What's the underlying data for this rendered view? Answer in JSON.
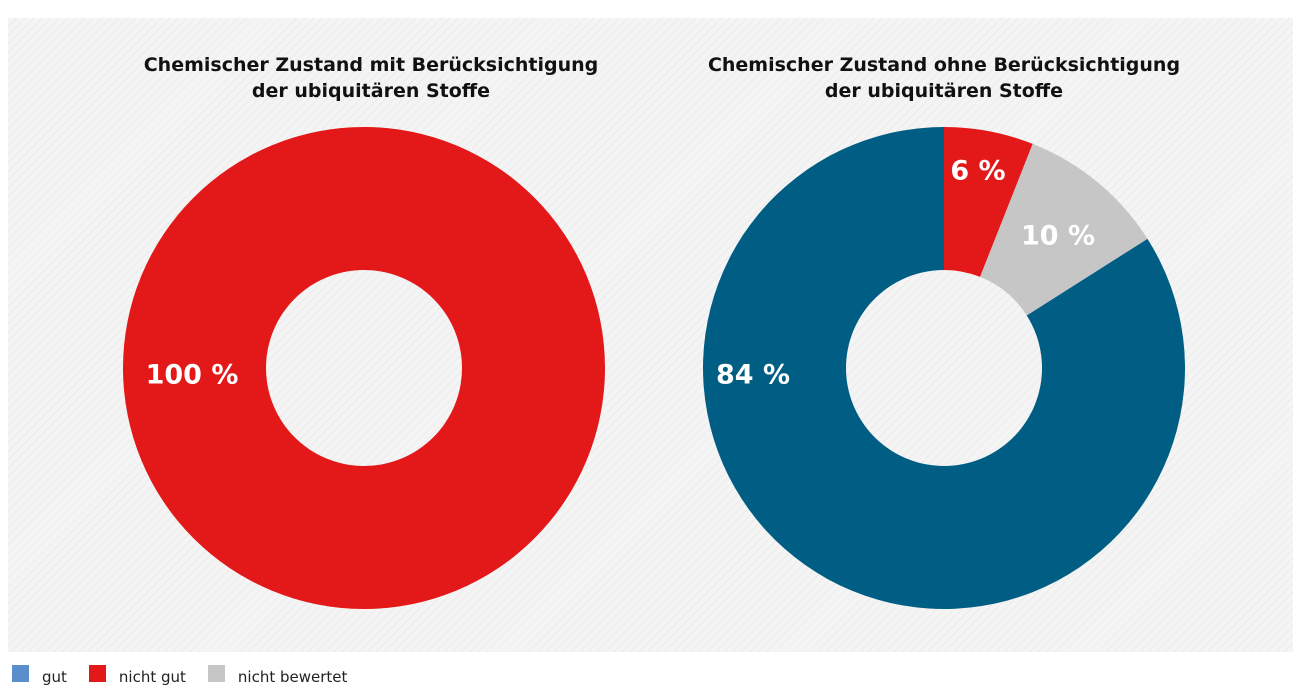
{
  "colors": {
    "gut": "#5b8fcc",
    "nicht_gut": "#e31818",
    "nicht_bewertet": "#c6c6c6",
    "gut_dark": "#005e84"
  },
  "legend": [
    {
      "label": "gut",
      "color": "#5b8fcc"
    },
    {
      "label": "nicht gut",
      "color": "#e31818"
    },
    {
      "label": "nicht bewertet",
      "color": "#c6c6c6"
    }
  ],
  "chart_data": [
    {
      "type": "pie",
      "title": "Chemischer Zustand mit Berücksichtigung der ubiquitären Stoffe",
      "title_lines": [
        "Chemischer Zustand mit Berücksichtigung",
        "der ubiquitären Stoffe"
      ],
      "categories": [
        "nicht gut"
      ],
      "values": [
        100
      ],
      "labels": [
        "100 %"
      ],
      "colors": [
        "#e31818"
      ],
      "donut": true
    },
    {
      "type": "pie",
      "title": "Chemischer Zustand ohne Berücksichtigung der ubiquitären Stoffe",
      "title_lines": [
        "Chemischer Zustand ohne Berücksichtigung",
        "der ubiquitären Stoffe"
      ],
      "categories": [
        "nicht gut",
        "nicht bewertet",
        "gut"
      ],
      "values": [
        6,
        10,
        84
      ],
      "labels": [
        "6 %",
        "10 %",
        "84 %"
      ],
      "colors": [
        "#e31818",
        "#c6c6c6",
        "#005e84"
      ],
      "donut": true
    }
  ]
}
